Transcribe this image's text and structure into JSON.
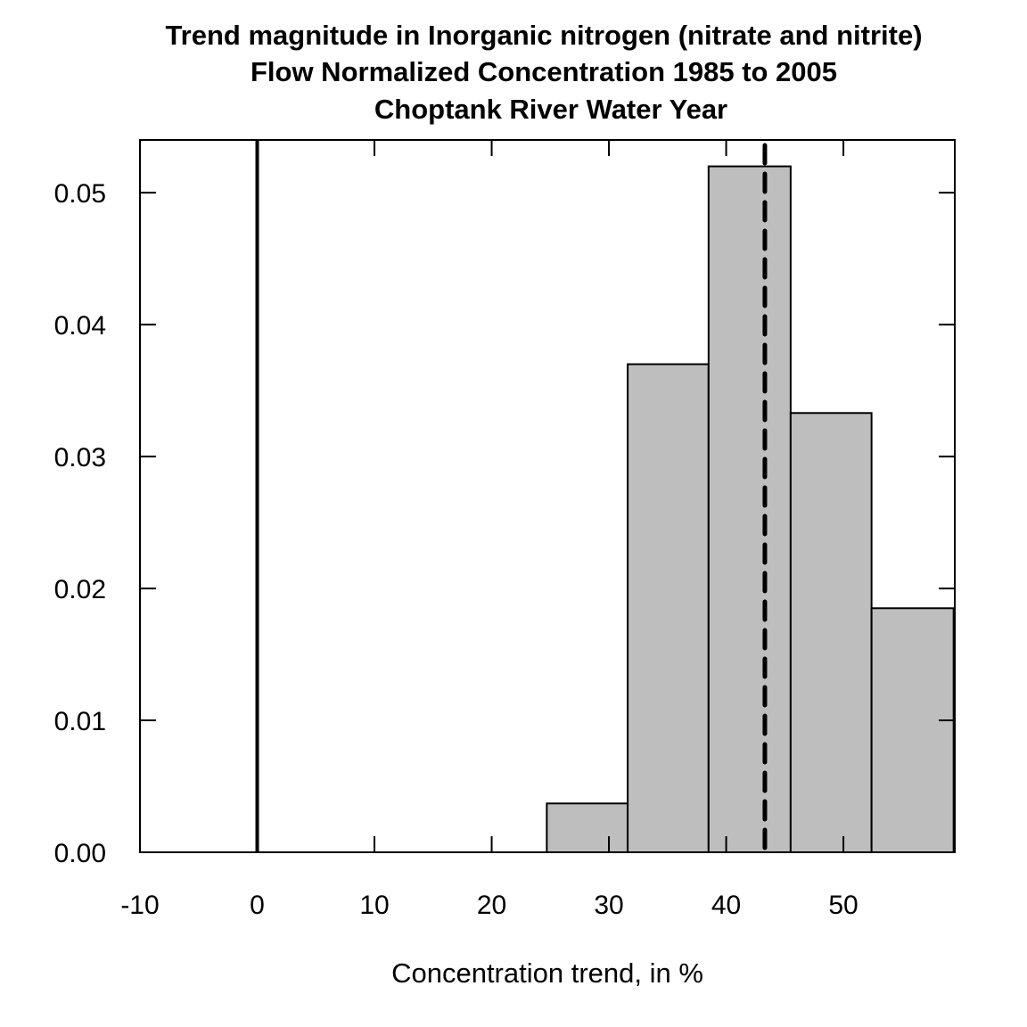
{
  "chart_data": {
    "type": "bar",
    "title": [
      "Trend magnitude in Inorganic nitrogen (nitrate and nitrite)",
      "Flow Normalized Concentration 1985 to 2005",
      "Choptank River Water Year"
    ],
    "xlabel": "Concentration trend, in %",
    "ylabel": "",
    "xlim": [
      -10,
      59.5
    ],
    "ylim": [
      0,
      0.054
    ],
    "x_ticks": [
      -10,
      0,
      10,
      20,
      30,
      40,
      50
    ],
    "x_tick_labels": [
      "-10",
      "0",
      "10",
      "20",
      "30",
      "40",
      "50"
    ],
    "y_ticks": [
      0,
      0.01,
      0.02,
      0.03,
      0.04,
      0.05
    ],
    "y_tick_labels": [
      "0.00",
      "0.01",
      "0.02",
      "0.03",
      "0.04",
      "0.05"
    ],
    "bins": [
      {
        "x0": 24.7,
        "x1": 31.6,
        "density": 0.0037
      },
      {
        "x0": 31.6,
        "x1": 38.5,
        "density": 0.037
      },
      {
        "x0": 38.5,
        "x1": 45.5,
        "density": 0.052
      },
      {
        "x0": 45.5,
        "x1": 52.4,
        "density": 0.0333
      },
      {
        "x0": 52.4,
        "x1": 59.4,
        "density": 0.0185
      }
    ],
    "reference_lines": [
      {
        "x": 0,
        "style": "solid"
      },
      {
        "x": 43.3,
        "style": "dashed"
      }
    ],
    "colors": {
      "bar_fill": "#bebebe",
      "bar_stroke": "#000000",
      "line": "#000000"
    }
  }
}
